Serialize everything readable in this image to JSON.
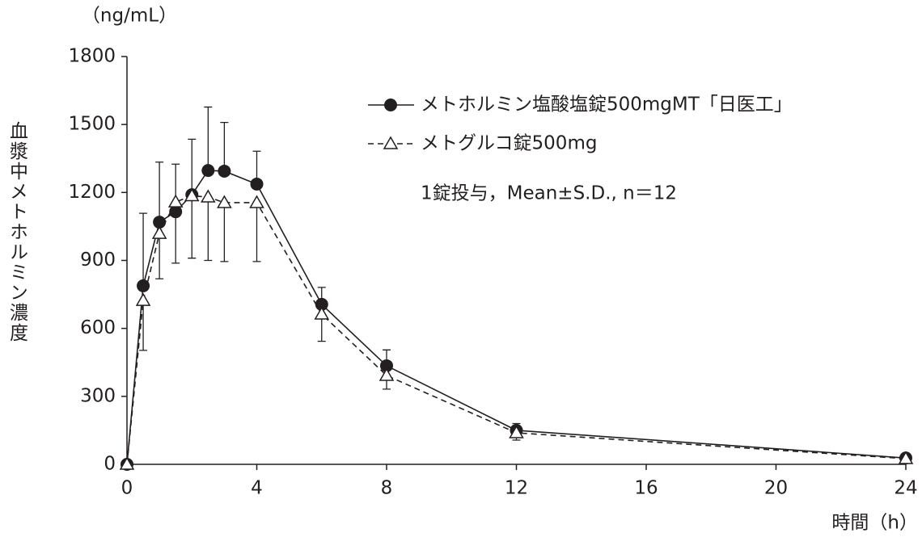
{
  "chart_data": {
    "type": "line",
    "y_label": "血漿中メトホルミン濃度",
    "y_unit": "（ng/mL）",
    "x_label": "時間（h）",
    "annotation": "1錠投与，Mean±S.D., n＝12",
    "x": [
      0,
      0.5,
      1,
      1.5,
      2,
      2.5,
      3,
      4,
      6,
      8,
      12,
      24
    ],
    "series": [
      {
        "name": "メトホルミン塩酸塩錠500mgMT「日医工」",
        "color": "#231f20",
        "marker": "circle",
        "dash": false,
        "error_bar": "upper",
        "values": [
          0,
          788,
          1069,
          1115,
          1190,
          1297,
          1294,
          1237,
          706,
          435,
          150,
          28
        ],
        "errors": [
          0,
          320,
          265,
          210,
          245,
          280,
          215,
          145,
          75,
          70,
          30,
          10
        ]
      },
      {
        "name": "メトグルコ錠500mg",
        "color": "#231f20",
        "marker": "triangle",
        "dash": true,
        "error_bar": "lower",
        "values": [
          0,
          723,
          1019,
          1158,
          1185,
          1180,
          1155,
          1155,
          663,
          392,
          139,
          25
        ],
        "errors": [
          0,
          220,
          200,
          270,
          275,
          280,
          260,
          260,
          120,
          60,
          32,
          10
        ]
      }
    ],
    "xlim": [
      0,
      24
    ],
    "xticks": [
      0,
      4,
      8,
      12,
      16,
      20,
      24
    ],
    "ylim": [
      0,
      1800
    ],
    "yticks": [
      0,
      300,
      600,
      900,
      1200,
      1500,
      1800
    ]
  }
}
